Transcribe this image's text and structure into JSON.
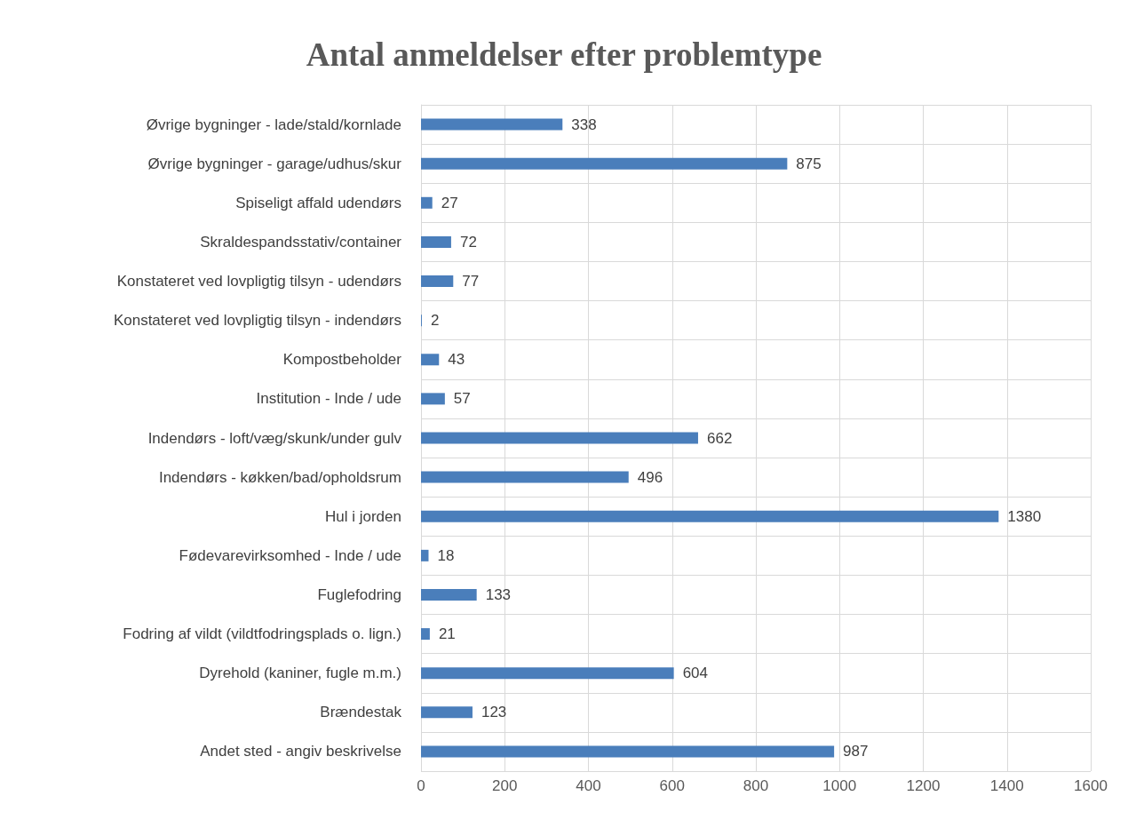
{
  "chart_data": {
    "type": "bar",
    "orientation": "horizontal",
    "title": "Antal anmeldelser efter problemtype",
    "categories": [
      "Øvrige bygninger - lade/stald/kornlade",
      "Øvrige bygninger - garage/udhus/skur",
      "Spiseligt affald udendørs",
      "Skraldespandsstativ/container",
      "Konstateret ved lovpligtig tilsyn - udendørs",
      "Konstateret ved lovpligtig tilsyn - indendørs",
      "Kompostbeholder",
      "Institution - Inde / ude",
      "Indendørs - loft/væg/skunk/under gulv",
      "Indendørs - køkken/bad/opholdsrum",
      "Hul i jorden",
      "Fødevarevirksomhed - Inde / ude",
      "Fuglefodring",
      "Fodring af vildt (vildtfodringsplads o. lign.)",
      "Dyrehold (kaniner, fugle m.m.)",
      "Brændestak",
      "Andet sted - angiv beskrivelse"
    ],
    "values": [
      338,
      875,
      27,
      72,
      77,
      2,
      43,
      57,
      662,
      496,
      1380,
      18,
      133,
      21,
      604,
      123,
      987
    ],
    "color": "#4a7ebb",
    "xlim": [
      0,
      1600
    ],
    "xticks": [
      0,
      200,
      400,
      600,
      800,
      1000,
      1200,
      1400,
      1600
    ],
    "grid": true,
    "data_labels": true
  }
}
